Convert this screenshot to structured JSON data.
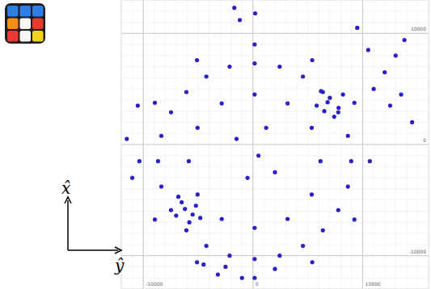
{
  "chart_data": {
    "type": "scatter",
    "x_label": "ŷ",
    "y_label": "x̂",
    "xlim": [
      -12000,
      16000
    ],
    "ylim": [
      -13000,
      13000
    ],
    "xticks": [
      -10000,
      0,
      10000
    ],
    "yticks": [
      -10000,
      0,
      10000
    ],
    "grid": true,
    "color": "#2a22c8",
    "marker": "circle",
    "x": [
      8950,
      8650,
      7770,
      6370,
      4550,
      2430,
      150,
      -2130,
      -4250,
      -6070,
      -7470,
      -8350,
      -8650,
      -8350,
      -7470,
      -6070,
      -4250,
      -2130,
      150,
      2430,
      4550,
      6370,
      7770,
      8650,
      6150,
      5350,
      3150,
      150,
      -2850,
      -5050,
      -5850,
      -5050,
      -2850,
      150,
      3150,
      5350,
      10650,
      9240,
      5400,
      150,
      -5100,
      -8940,
      -10350,
      -8940,
      -5100,
      150,
      5400,
      9240,
      6500,
      7000,
      7800,
      6200,
      7400,
      8200,
      6800,
      5800,
      -5500,
      -6500,
      -7000,
      -5800,
      -4800,
      -6800,
      -6200,
      -5200,
      11000,
      12000,
      13000,
      13800,
      12500,
      13500,
      14500,
      10500,
      9500,
      -3200,
      -2500,
      -1000,
      2000,
      -4500,
      -1700,
      -1200,
      200,
      -11500,
      -11000,
      -10500,
      500,
      -1500,
      2000,
      -500,
      1200
    ],
    "values": [
      -1500,
      780,
      2900,
      4720,
      6120,
      7000,
      7300,
      7000,
      6120,
      4720,
      2900,
      780,
      -1500,
      -3780,
      -5900,
      -7720,
      -9120,
      -10000,
      -10300,
      -10000,
      -9120,
      -7720,
      -5900,
      -3780,
      -1500,
      1500,
      3700,
      4500,
      3700,
      1500,
      -1500,
      -4500,
      -6700,
      -7500,
      -6700,
      -4500,
      -1500,
      3750,
      7590,
      9000,
      7590,
      3750,
      -1500,
      -6750,
      -10590,
      -12000,
      -10590,
      -6750,
      3000,
      4200,
      3300,
      4800,
      2500,
      4500,
      3800,
      3500,
      -6300,
      -5200,
      -6400,
      -7000,
      -6600,
      -4700,
      -5800,
      -5500,
      5000,
      6500,
      8000,
      9400,
      3500,
      4500,
      2000,
      8500,
      10500,
      -11700,
      -11000,
      -12000,
      -11200,
      -10800,
      12300,
      11200,
      11800,
      500,
      -3000,
      3500,
      -1000,
      500,
      -2500,
      -3000,
      1500
    ]
  }
}
